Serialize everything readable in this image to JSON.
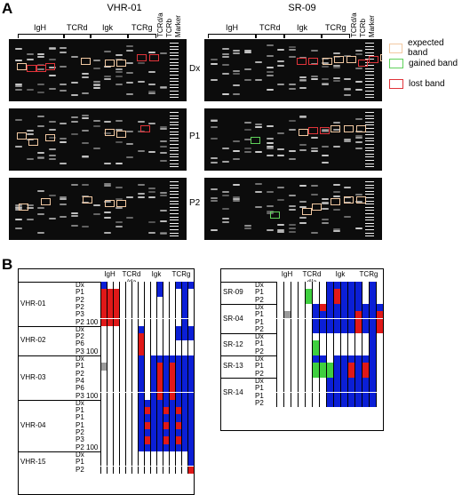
{
  "panel_a": {
    "letter": "A",
    "samples": [
      {
        "title": "VHR-01",
        "groups": [
          "IgH",
          "TCRd",
          "Igk",
          "TCRg"
        ],
        "extra_lanes": [
          "TCRd/a",
          "TCRb",
          "Marker"
        ],
        "rows": [
          "Dx",
          "P1",
          "P2"
        ]
      },
      {
        "title": "SR-09",
        "groups": [
          "IgH",
          "TCRd",
          "Igk",
          "TCRg"
        ],
        "extra_lanes": [
          "TCRd/a",
          "TCRb",
          "Marker"
        ],
        "rows": [
          "Dx",
          "P1",
          "P2"
        ]
      }
    ],
    "legend": [
      {
        "label": "expected band",
        "color": "#f2c9a2"
      },
      {
        "label": "gained band",
        "color": "#5fd15a"
      },
      {
        "label": "lost band",
        "color": "#e0343a"
      }
    ]
  },
  "panel_b": {
    "letter": "B",
    "colors": {
      "blue": "#0b1fd6",
      "red": "#e01818",
      "green": "#3fcf3f",
      "gray": "#9a9a9a",
      "white": "#ffffff"
    },
    "left": {
      "headers": [
        "IgH",
        "TCRd /da",
        "Igk",
        "TCRg"
      ],
      "groups": [
        {
          "name": "VHR-01",
          "rows": [
            "Dx",
            "P1",
            "P2",
            "P2",
            "P3",
            "P2 100"
          ]
        },
        {
          "name": "VHR-02",
          "rows": [
            "Dx",
            "P2",
            "P6",
            "P3 100"
          ]
        },
        {
          "name": "VHR-03",
          "rows": [
            "Dx",
            "P1",
            "P2",
            "P4",
            "P6",
            "P3 100"
          ]
        },
        {
          "name": "VHR-04",
          "rows": [
            "Dx",
            "P1",
            "P1",
            "P1",
            "P2",
            "P3",
            "P2 100"
          ]
        },
        {
          "name": "VHR-15",
          "rows": [
            "Dx",
            "P1",
            "P2"
          ]
        }
      ]
    },
    "right": {
      "headers": [
        "IgH",
        "TCRd d/a",
        "Igk",
        "TCRg"
      ],
      "groups": [
        {
          "name": "SR-09",
          "rows": [
            "Dx",
            "P1",
            "P2"
          ]
        },
        {
          "name": "SR-04",
          "rows": [
            "Dx",
            "P1",
            "P1",
            "P2"
          ]
        },
        {
          "name": "SR-12",
          "rows": [
            "Dx",
            "P1",
            "P2"
          ]
        },
        {
          "name": "SR-13",
          "rows": [
            "Dx",
            "P1",
            "P2"
          ]
        },
        {
          "name": "SR-14",
          "rows": [
            "Dx",
            "P1",
            "P1",
            "P2"
          ]
        }
      ]
    }
  }
}
